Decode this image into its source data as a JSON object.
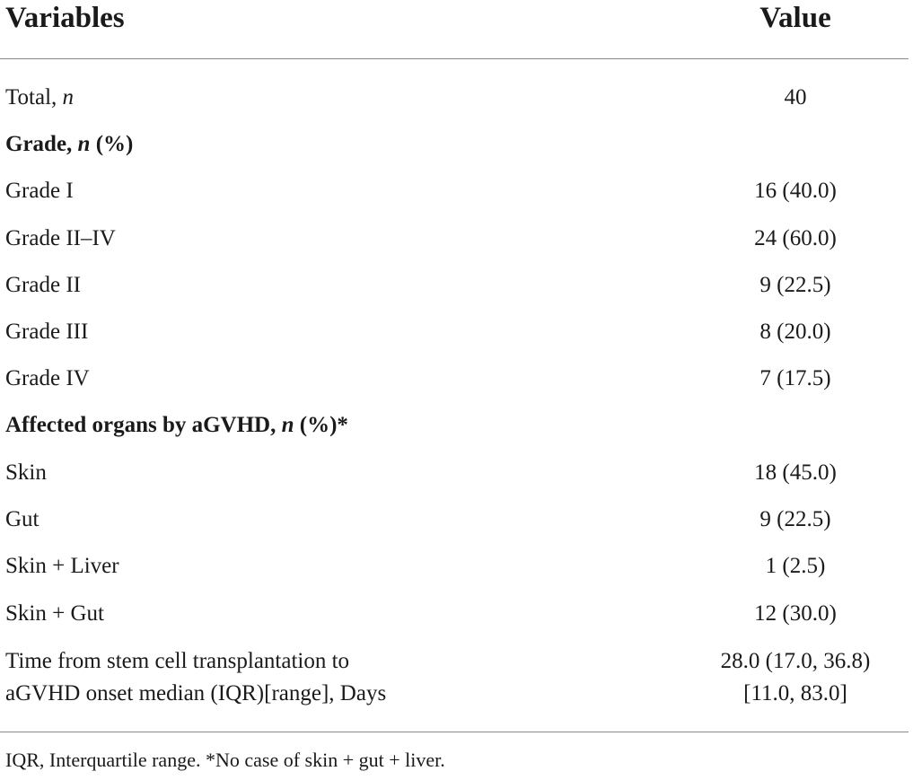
{
  "header": {
    "variables": "Variables",
    "value": "Value"
  },
  "rows": {
    "total": {
      "label": "Total, ",
      "label_italic": "n",
      "value": "40"
    },
    "grade_section": {
      "label": "Grade, ",
      "label_italic": "n",
      "label_tail": " (%)"
    },
    "grade_i": {
      "label": "Grade I",
      "value": "16 (40.0)"
    },
    "grade_ii_iv": {
      "label": "Grade II–IV",
      "value": "24 (60.0)"
    },
    "grade_ii": {
      "label": "Grade II",
      "value": "9 (22.5)"
    },
    "grade_iii": {
      "label": "Grade III",
      "value": "8 (20.0)"
    },
    "grade_iv": {
      "label": "Grade IV",
      "value": "7 (17.5)"
    },
    "organs_section": {
      "label": "Affected organs by aGVHD, ",
      "label_italic": "n",
      "label_tail": " (%)*"
    },
    "skin": {
      "label": "Skin",
      "value": "18 (45.0)"
    },
    "gut": {
      "label": "Gut",
      "value": "9 (22.5)"
    },
    "skin_liver": {
      "label": "Skin + Liver",
      "value": "1 (2.5)"
    },
    "skin_gut": {
      "label": "Skin + Gut",
      "value": "12 (30.0)"
    },
    "time": {
      "label_line1": "Time from stem cell transplantation to",
      "label_line2": "aGVHD onset median (IQR)[range], Days",
      "value_line1": "28.0 (17.0, 36.8)",
      "value_line2": "[11.0, 83.0]"
    }
  },
  "footnote": "IQR, Interquartile range. *No case of skin + gut + liver."
}
